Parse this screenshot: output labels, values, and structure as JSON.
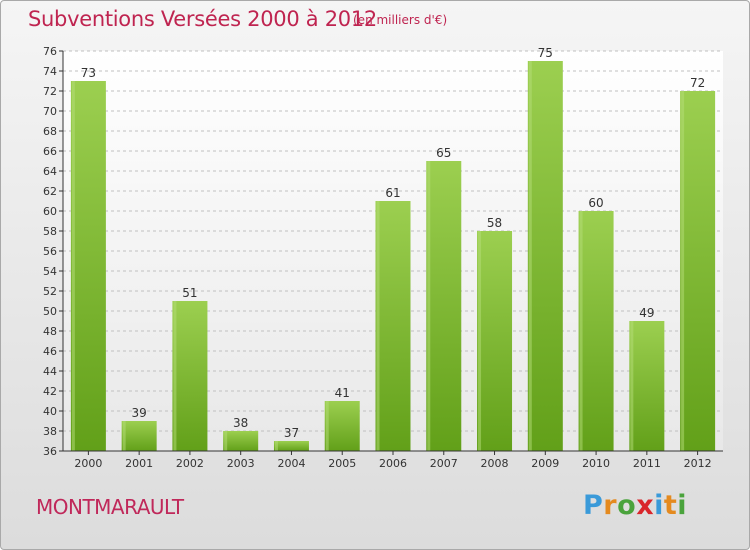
{
  "title": "Subventions Versées 2000 à 2012",
  "subtitle": "(en milliers d'€)",
  "commune": "MONTMARAULT",
  "logo": {
    "text": "Proxiti",
    "letters": [
      {
        "char": "P",
        "color": "#3a9ad9"
      },
      {
        "char": "r",
        "color": "#e48a1f"
      },
      {
        "char": "o",
        "color": "#4aa33c"
      },
      {
        "char": "x",
        "color": "#d9262b"
      },
      {
        "char": "i",
        "color": "#3a9ad9"
      },
      {
        "char": "t",
        "color": "#e48a1f"
      },
      {
        "char": "i",
        "color": "#4aa33c"
      }
    ]
  },
  "chart_data": {
    "type": "bar",
    "categories": [
      "2000",
      "2001",
      "2002",
      "2003",
      "2004",
      "2005",
      "2006",
      "2007",
      "2008",
      "2009",
      "2010",
      "2011",
      "2012"
    ],
    "values": [
      73,
      39,
      51,
      38,
      37,
      41,
      61,
      65,
      58,
      75,
      60,
      49,
      72
    ],
    "ylim": [
      36,
      76
    ],
    "yticks": [
      36,
      38,
      40,
      42,
      44,
      46,
      48,
      50,
      52,
      54,
      56,
      58,
      60,
      62,
      64,
      66,
      68,
      70,
      72,
      74,
      76
    ],
    "grid": true,
    "data_labels": true,
    "bar_color_top": "#9ccf50",
    "bar_color_bottom": "#62a019",
    "axis_color": "#333333",
    "grid_color": "#c0c0c0"
  }
}
